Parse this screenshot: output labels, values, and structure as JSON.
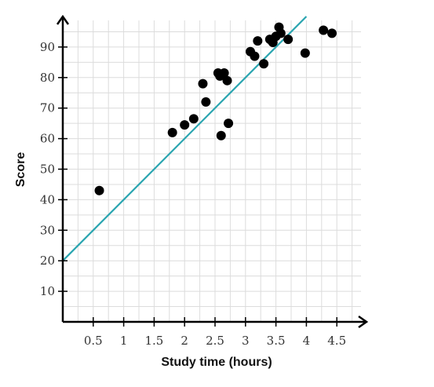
{
  "chart_data": {
    "type": "scatter",
    "xlabel": "Study time (hours)",
    "ylabel": "Score",
    "xlim": [
      0,
      5
    ],
    "ylim": [
      0,
      100
    ],
    "x_ticks": [
      {
        "value": 0.5,
        "label": "0.5"
      },
      {
        "value": 1,
        "label": "1"
      },
      {
        "value": 1.5,
        "label": "1.5"
      },
      {
        "value": 2,
        "label": "2"
      },
      {
        "value": 2.5,
        "label": "2.5"
      },
      {
        "value": 3,
        "label": "3"
      },
      {
        "value": 3.5,
        "label": "3.5"
      },
      {
        "value": 4,
        "label": "4"
      },
      {
        "value": 4.5,
        "label": "4.5"
      }
    ],
    "y_ticks": [
      {
        "value": 10,
        "label": "10"
      },
      {
        "value": 20,
        "label": "20"
      },
      {
        "value": 30,
        "label": "30"
      },
      {
        "value": 40,
        "label": "40"
      },
      {
        "value": 50,
        "label": "50"
      },
      {
        "value": 60,
        "label": "60"
      },
      {
        "value": 70,
        "label": "70"
      },
      {
        "value": 80,
        "label": "80"
      },
      {
        "value": 90,
        "label": "90"
      }
    ],
    "grid": true,
    "point_color": "#000000",
    "line_color": "#2aa5b0",
    "points": [
      {
        "x": 0.6,
        "y": 43
      },
      {
        "x": 1.8,
        "y": 62
      },
      {
        "x": 2.0,
        "y": 64.5
      },
      {
        "x": 2.15,
        "y": 66.5
      },
      {
        "x": 2.3,
        "y": 78
      },
      {
        "x": 2.35,
        "y": 72
      },
      {
        "x": 2.55,
        "y": 81.5
      },
      {
        "x": 2.58,
        "y": 80.5
      },
      {
        "x": 2.6,
        "y": 61
      },
      {
        "x": 2.65,
        "y": 81.5
      },
      {
        "x": 2.7,
        "y": 79
      },
      {
        "x": 2.72,
        "y": 65
      },
      {
        "x": 3.08,
        "y": 88.5
      },
      {
        "x": 3.15,
        "y": 87
      },
      {
        "x": 3.2,
        "y": 92
      },
      {
        "x": 3.3,
        "y": 84.5
      },
      {
        "x": 3.4,
        "y": 92.5
      },
      {
        "x": 3.45,
        "y": 91.5
      },
      {
        "x": 3.5,
        "y": 93.5
      },
      {
        "x": 3.55,
        "y": 96.5
      },
      {
        "x": 3.58,
        "y": 94.5
      },
      {
        "x": 3.7,
        "y": 92.5
      },
      {
        "x": 3.98,
        "y": 88
      },
      {
        "x": 4.28,
        "y": 95.5
      },
      {
        "x": 4.42,
        "y": 94.5
      }
    ],
    "trend_line": {
      "intercept": 20,
      "slope": 20,
      "x_start": 0,
      "x_end": 4
    }
  }
}
